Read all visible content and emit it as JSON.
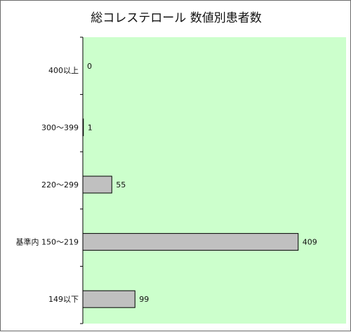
{
  "chart_data": {
    "type": "bar",
    "orientation": "horizontal",
    "title": "総コレステロール 数値別患者数",
    "categories": [
      "400以上",
      "300〜399",
      "220〜299",
      "基準内 150〜219",
      "149以下"
    ],
    "values": [
      0,
      1,
      55,
      409,
      99
    ],
    "xlim": [
      0,
      500
    ],
    "xlabel": "",
    "ylabel": "",
    "grid": false,
    "legend": "none",
    "colors": {
      "plot_background": "#ccffcc",
      "bar_fill": "#c0c0c0",
      "bar_stroke": "#000000",
      "axis": "#000000"
    }
  }
}
